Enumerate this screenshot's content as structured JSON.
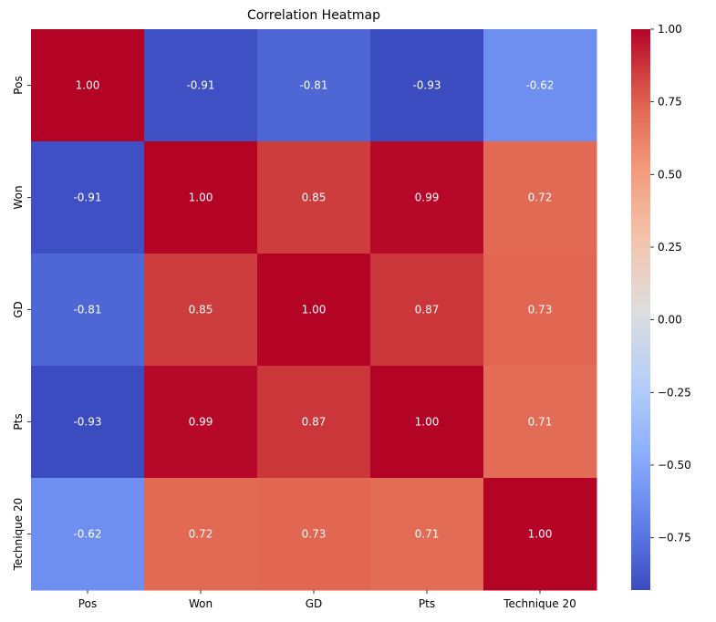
{
  "chart_data": {
    "type": "heatmap",
    "title": "Correlation Heatmap",
    "xlabel": "",
    "ylabel": "",
    "x_categories": [
      "Pos",
      "Won",
      "GD",
      "Pts",
      "Technique 20"
    ],
    "y_categories": [
      "Pos",
      "Won",
      "GD",
      "Pts",
      "Technique 20"
    ],
    "values": [
      [
        1.0,
        -0.91,
        -0.81,
        -0.93,
        -0.62
      ],
      [
        -0.91,
        1.0,
        0.85,
        0.99,
        0.72
      ],
      [
        -0.81,
        0.85,
        1.0,
        0.87,
        0.73
      ],
      [
        -0.93,
        0.99,
        0.87,
        1.0,
        0.71
      ],
      [
        -0.62,
        0.72,
        0.73,
        0.71,
        1.0
      ]
    ],
    "annotation_format": "0.00",
    "colormap": "coolwarm",
    "colorbar": {
      "range": [
        -0.93,
        1.0
      ],
      "ticks": [
        1.0,
        0.75,
        0.5,
        0.25,
        0.0,
        -0.25,
        -0.5,
        -0.75
      ],
      "tick_labels": [
        "1.00",
        "0.75",
        "0.50",
        "0.25",
        "0.00",
        "−0.25",
        "−0.50",
        "−0.75"
      ],
      "placement": "right"
    },
    "grid": false
  }
}
